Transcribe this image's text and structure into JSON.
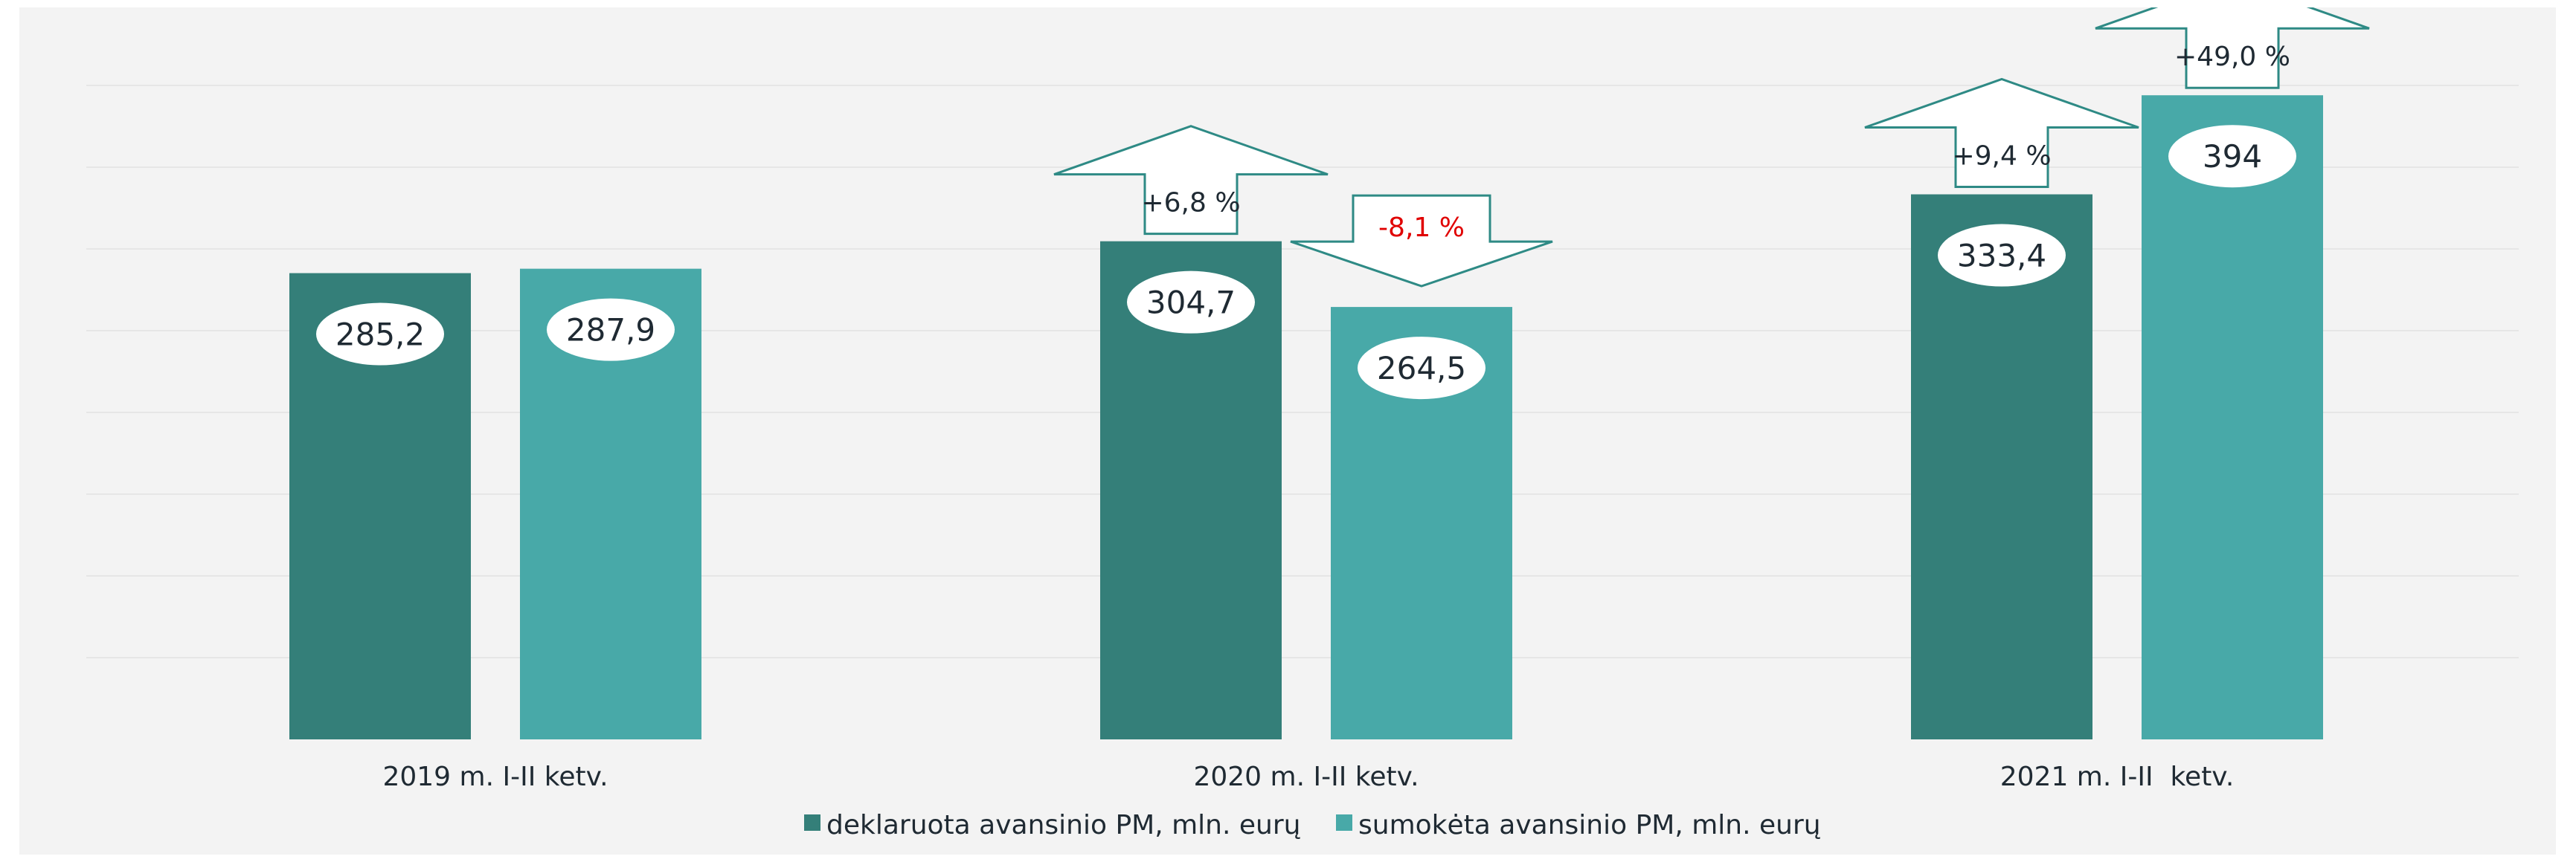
{
  "chart_data": {
    "type": "bar",
    "title": "",
    "xlabel": "",
    "ylabel": "",
    "categories": [
      "2019 m. I-II ketv.",
      "2020 m. I-II ketv.",
      "2021 m. I-II  ketv."
    ],
    "series": [
      {
        "name": "deklaruota avansinio PM, mln. eurų",
        "color": "#347f79",
        "values": [
          285.2,
          304.7,
          333.4
        ],
        "labels": [
          "285,2",
          "304,7",
          "333,4"
        ],
        "changes": [
          null,
          "+6,8 %",
          "+9,4 %"
        ],
        "change_direction": [
          null,
          "up",
          "up"
        ]
      },
      {
        "name": "sumokėta avansinio PM, mln. eurų",
        "color": "#48a9a8",
        "values": [
          287.9,
          264.5,
          394
        ],
        "labels": [
          "287,9",
          "264,5",
          "394"
        ],
        "changes": [
          null,
          "-8,1 %",
          "+49,0 %"
        ],
        "change_direction": [
          null,
          "down",
          "up"
        ]
      }
    ],
    "ylim": [
      0,
      400
    ],
    "grid": true,
    "legend_position": "bottom",
    "negative_change_color": "#e00000"
  }
}
